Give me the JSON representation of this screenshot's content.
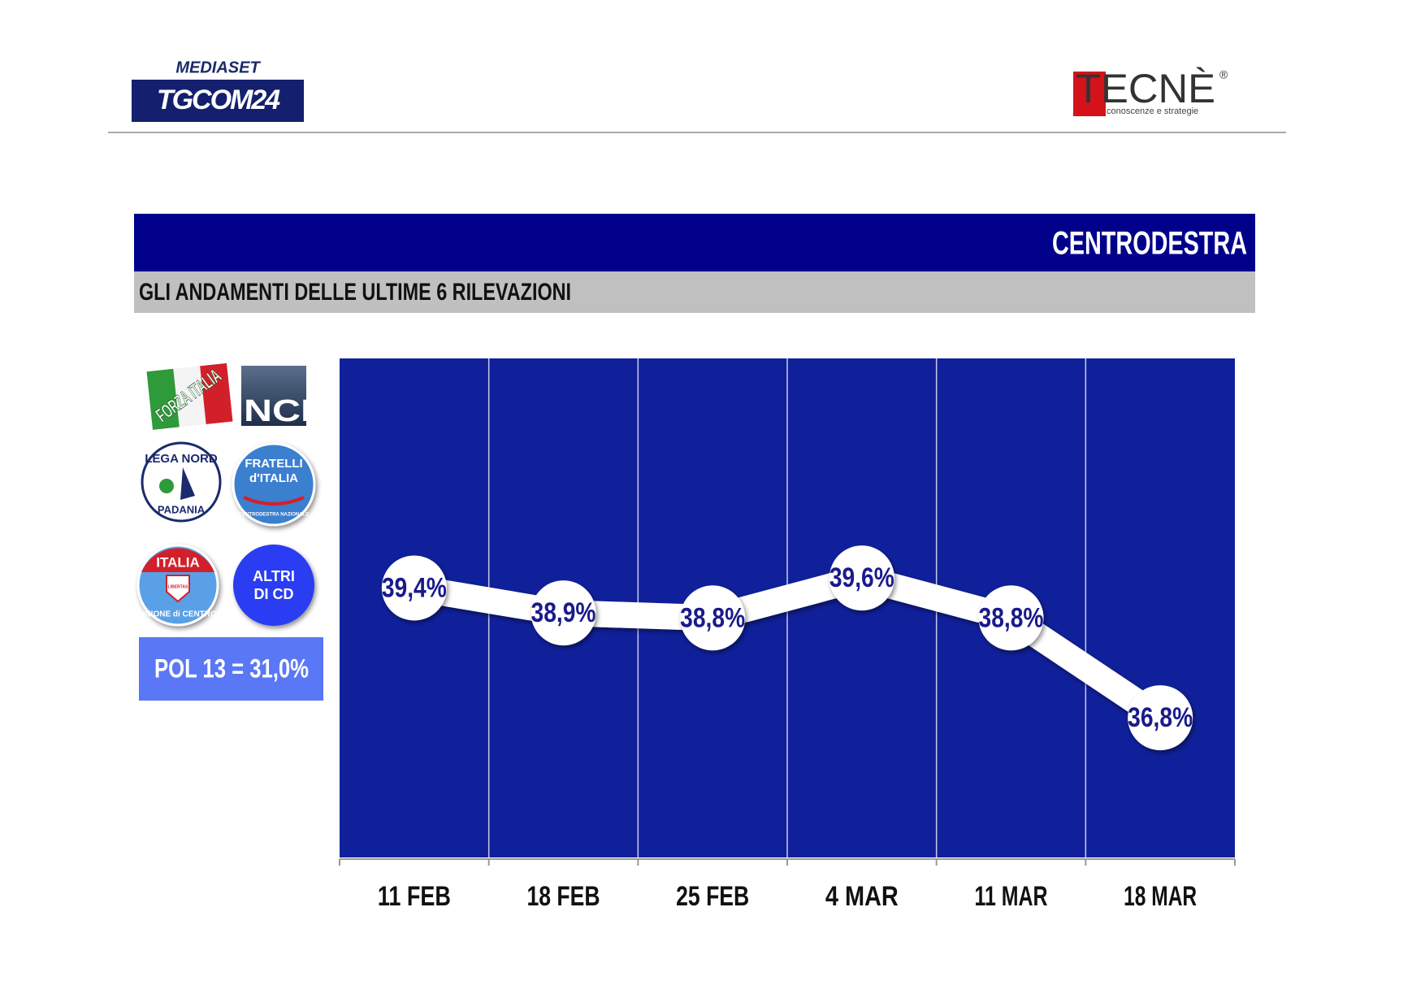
{
  "header": {
    "network": "MEDIASET",
    "channel": "TGCOM24",
    "pollster": "TECNÈ",
    "pollster_mark": "®",
    "pollster_tagline": "conoscenze e strategie"
  },
  "title": "CENTRODESTRA",
  "subtitle": "GLI ANDAMENTI DELLE ULTIME 6 RILEVAZIONI",
  "parties": {
    "forza_italia": "FORZA ITALIA",
    "ncd": "NCD",
    "lega_top": "LEGA NORD",
    "lega_bottom": "PADANIA",
    "fdi": "FRATELLI d'ITALIA",
    "fdi_sub": "CENTRODESTRA NAZIONALE",
    "udc_top": "ITALIA",
    "udc_shield": "LIBERTAS",
    "udc_bottom": "UNIONE di CENTRO",
    "altri": "ALTRI DI CD"
  },
  "note": "POL 13 = 31,0%",
  "chart_data": {
    "type": "line",
    "categories": [
      "11 FEB",
      "18 FEB",
      "25 FEB",
      "4 MAR",
      "11 MAR",
      "18 MAR"
    ],
    "values": [
      39.4,
      38.9,
      38.8,
      39.6,
      38.8,
      36.8
    ],
    "value_labels": [
      "39,4%",
      "38,9%",
      "38,8%",
      "39,6%",
      "38,8%",
      "36,8%"
    ],
    "ylim": [
      34,
      44
    ],
    "color": "#ffffff",
    "background": "#10209a"
  }
}
